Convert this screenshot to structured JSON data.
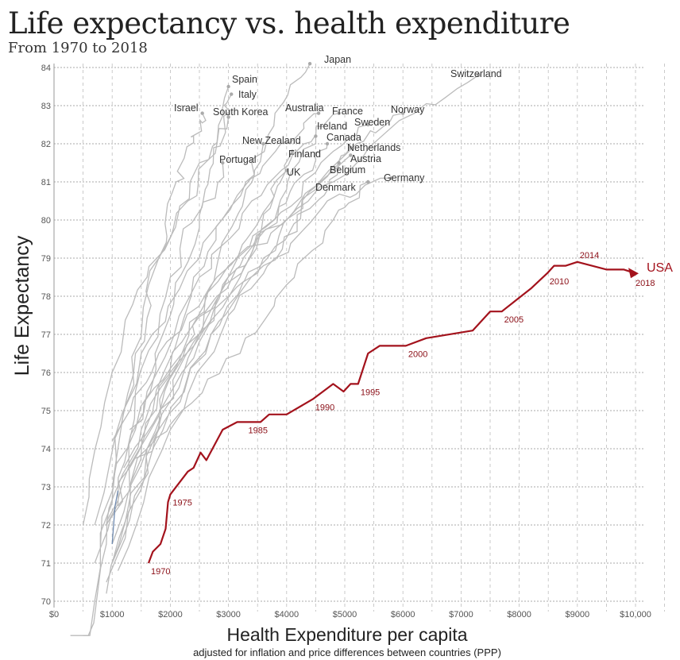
{
  "chart_data": {
    "type": "line",
    "title": "Life expectancy vs. health expenditure",
    "subtitle": "From 1970 to 2018",
    "xlabel": "Health Expenditure per capita",
    "xlabel_note": "adjusted for inflation and price differences between countries (PPP)",
    "ylabel": "Life Expectancy",
    "xlim": [
      0,
      10000
    ],
    "ylim": [
      70,
      84
    ],
    "x_ticks": [
      0,
      1000,
      2000,
      3000,
      4000,
      5000,
      6000,
      7000,
      8000,
      9000,
      10000
    ],
    "x_tick_labels": [
      "$0",
      "$1000",
      "$2000",
      "$3000",
      "$4000",
      "$5000",
      "$6000",
      "$7000",
      "$8000",
      "$9000",
      "$10,000"
    ],
    "y_ticks": [
      70,
      71,
      72,
      73,
      74,
      75,
      76,
      77,
      78,
      79,
      80,
      81,
      82,
      83,
      84
    ],
    "grid": true,
    "highlight": {
      "name": "USA",
      "color": "#a3121c",
      "points": [
        [
          1626,
          71.0
        ],
        [
          1700,
          71.3
        ],
        [
          1830,
          71.5
        ],
        [
          1920,
          71.9
        ],
        [
          1960,
          72.6
        ],
        [
          2000,
          72.8
        ],
        [
          2150,
          73.1
        ],
        [
          2300,
          73.4
        ],
        [
          2400,
          73.5
        ],
        [
          2520,
          73.9
        ],
        [
          2620,
          73.7
        ],
        [
          2900,
          74.5
        ],
        [
          3150,
          74.7
        ],
        [
          3550,
          74.7
        ],
        [
          3700,
          74.9
        ],
        [
          4000,
          74.9
        ],
        [
          4450,
          75.3
        ],
        [
          4800,
          75.7
        ],
        [
          4980,
          75.5
        ],
        [
          5100,
          75.7
        ],
        [
          5230,
          75.7
        ],
        [
          5400,
          76.5
        ],
        [
          5600,
          76.7
        ],
        [
          6050,
          76.7
        ],
        [
          6400,
          76.9
        ],
        [
          7200,
          77.1
        ],
        [
          7500,
          77.6
        ],
        [
          7700,
          77.6
        ],
        [
          7950,
          77.9
        ],
        [
          8200,
          78.2
        ],
        [
          8480,
          78.6
        ],
        [
          8600,
          78.8
        ],
        [
          8800,
          78.8
        ],
        [
          9000,
          78.9
        ],
        [
          9500,
          78.7
        ],
        [
          9800,
          78.7
        ],
        [
          10000,
          78.6
        ]
      ],
      "year_labels": [
        {
          "year": "1970",
          "x": 1626,
          "y": 71.0
        },
        {
          "year": "1975",
          "x": 2000,
          "y": 72.8
        },
        {
          "year": "1985",
          "x": 3300,
          "y": 74.7
        },
        {
          "year": "1990",
          "x": 4450,
          "y": 75.3
        },
        {
          "year": "1995",
          "x": 5230,
          "y": 75.7
        },
        {
          "year": "2000",
          "x": 6050,
          "y": 76.7
        },
        {
          "year": "2005",
          "x": 7700,
          "y": 77.6
        },
        {
          "year": "2010",
          "x": 8480,
          "y": 78.6
        },
        {
          "year": "2014",
          "x": 9000,
          "y": 78.9
        },
        {
          "year": "2018",
          "x": 10000,
          "y": 78.6
        }
      ]
    },
    "series_color": "#bbbbbb",
    "series": [
      {
        "name": "Japan",
        "points": [
          [
            700,
            72.0
          ],
          [
            1500,
            76.5
          ],
          [
            2500,
            79.0
          ],
          [
            3300,
            81.0
          ],
          [
            3800,
            82.8
          ],
          [
            4400,
            84.1
          ]
        ]
      },
      {
        "name": "Switzerland",
        "points": [
          [
            1300,
            73.0
          ],
          [
            2500,
            77.0
          ],
          [
            3500,
            79.5
          ],
          [
            4800,
            81.0
          ],
          [
            6200,
            82.8
          ],
          [
            7300,
            83.8
          ]
        ]
      },
      {
        "name": "Spain",
        "points": [
          [
            500,
            72.0
          ],
          [
            1000,
            76.0
          ],
          [
            1600,
            78.5
          ],
          [
            2300,
            80.5
          ],
          [
            2800,
            82.0
          ],
          [
            3000,
            83.5
          ]
        ]
      },
      {
        "name": "Italy",
        "points": [
          [
            800,
            71.5
          ],
          [
            1400,
            75.5
          ],
          [
            2000,
            78.5
          ],
          [
            2600,
            80.8
          ],
          [
            2950,
            82.3
          ],
          [
            3050,
            83.3
          ]
        ]
      },
      {
        "name": "Israel",
        "points": [
          [
            1000,
            73.0
          ],
          [
            1400,
            76.5
          ],
          [
            1800,
            79.0
          ],
          [
            2100,
            81.0
          ],
          [
            2400,
            82.2
          ],
          [
            2550,
            82.8
          ]
        ]
      },
      {
        "name": "South Korea",
        "points": [
          [
            300,
            62.0
          ],
          [
            700,
            70.0
          ],
          [
            1200,
            75.0
          ],
          [
            1800,
            79.0
          ],
          [
            2500,
            81.5
          ],
          [
            3000,
            82.7
          ]
        ]
      },
      {
        "name": "Australia",
        "points": [
          [
            1000,
            71.0
          ],
          [
            1700,
            75.0
          ],
          [
            2400,
            78.5
          ],
          [
            3100,
            80.5
          ],
          [
            3900,
            82.0
          ],
          [
            4550,
            82.8
          ]
        ]
      },
      {
        "name": "France",
        "points": [
          [
            900,
            72.0
          ],
          [
            1600,
            75.5
          ],
          [
            2500,
            78.5
          ],
          [
            3400,
            80.5
          ],
          [
            4300,
            82.0
          ],
          [
            4900,
            82.8
          ]
        ]
      },
      {
        "name": "Norway",
        "points": [
          [
            1000,
            74.2
          ],
          [
            1800,
            76.5
          ],
          [
            2800,
            78.5
          ],
          [
            4000,
            80.0
          ],
          [
            5200,
            82.0
          ],
          [
            6000,
            82.8
          ]
        ]
      },
      {
        "name": "Sweden",
        "points": [
          [
            1300,
            74.5
          ],
          [
            2200,
            76.5
          ],
          [
            3000,
            78.8
          ],
          [
            3900,
            80.2
          ],
          [
            4800,
            81.8
          ],
          [
            5400,
            82.5
          ]
        ]
      },
      {
        "name": "Ireland",
        "points": [
          [
            700,
            71.0
          ],
          [
            1300,
            73.5
          ],
          [
            2200,
            76.0
          ],
          [
            3200,
            78.5
          ],
          [
            4000,
            80.8
          ],
          [
            4500,
            82.2
          ]
        ]
      },
      {
        "name": "Canada",
        "points": [
          [
            1100,
            72.5
          ],
          [
            1900,
            75.5
          ],
          [
            2800,
            78.0
          ],
          [
            3700,
            79.8
          ],
          [
            4300,
            81.2
          ],
          [
            4700,
            82.0
          ]
        ]
      },
      {
        "name": "New Zealand",
        "points": [
          [
            1000,
            71.5
          ],
          [
            1600,
            74.0
          ],
          [
            2200,
            76.5
          ],
          [
            2800,
            78.8
          ],
          [
            3300,
            80.8
          ],
          [
            3600,
            82.0
          ]
        ]
      },
      {
        "name": "Netherlands",
        "points": [
          [
            1200,
            73.5
          ],
          [
            2000,
            76.0
          ],
          [
            3000,
            78.0
          ],
          [
            3800,
            79.3
          ],
          [
            4600,
            81.0
          ],
          [
            5100,
            81.9
          ]
        ]
      },
      {
        "name": "Finland",
        "points": [
          [
            900,
            70.2
          ],
          [
            1600,
            74.0
          ],
          [
            2400,
            76.8
          ],
          [
            3200,
            78.8
          ],
          [
            3800,
            80.7
          ],
          [
            4100,
            81.8
          ]
        ]
      },
      {
        "name": "Austria",
        "points": [
          [
            900,
            70.5
          ],
          [
            1700,
            74.0
          ],
          [
            2700,
            77.0
          ],
          [
            3600,
            79.0
          ],
          [
            4500,
            80.8
          ],
          [
            5100,
            81.7
          ]
        ]
      },
      {
        "name": "Portugal",
        "points": [
          [
            500,
            67.5
          ],
          [
            900,
            71.5
          ],
          [
            1400,
            74.5
          ],
          [
            2000,
            77.5
          ],
          [
            2500,
            79.8
          ],
          [
            2900,
            81.5
          ]
        ]
      },
      {
        "name": "Belgium",
        "points": [
          [
            1000,
            71.0
          ],
          [
            1800,
            74.5
          ],
          [
            2700,
            77.0
          ],
          [
            3600,
            78.8
          ],
          [
            4400,
            80.3
          ],
          [
            4900,
            81.5
          ]
        ]
      },
      {
        "name": "UK",
        "points": [
          [
            900,
            72.0
          ],
          [
            1500,
            74.5
          ],
          [
            2200,
            76.8
          ],
          [
            2900,
            78.3
          ],
          [
            3600,
            80.2
          ],
          [
            4000,
            81.3
          ]
        ]
      },
      {
        "name": "Germany",
        "points": [
          [
            1100,
            70.8
          ],
          [
            2000,
            74.5
          ],
          [
            3000,
            77.5
          ],
          [
            3800,
            79.0
          ],
          [
            4700,
            80.5
          ],
          [
            5800,
            81.1
          ]
        ]
      },
      {
        "name": "Denmark",
        "points": [
          [
            1300,
            73.5
          ],
          [
            2200,
            75.0
          ],
          [
            3200,
            76.5
          ],
          [
            4000,
            78.3
          ],
          [
            4800,
            80.0
          ],
          [
            5400,
            81.0
          ]
        ]
      }
    ],
    "minor_series": {
      "color": "#6f8ab0",
      "points": [
        [
          1000,
          71.5
        ],
        [
          1050,
          72.5
        ],
        [
          1100,
          72.9
        ]
      ]
    }
  }
}
